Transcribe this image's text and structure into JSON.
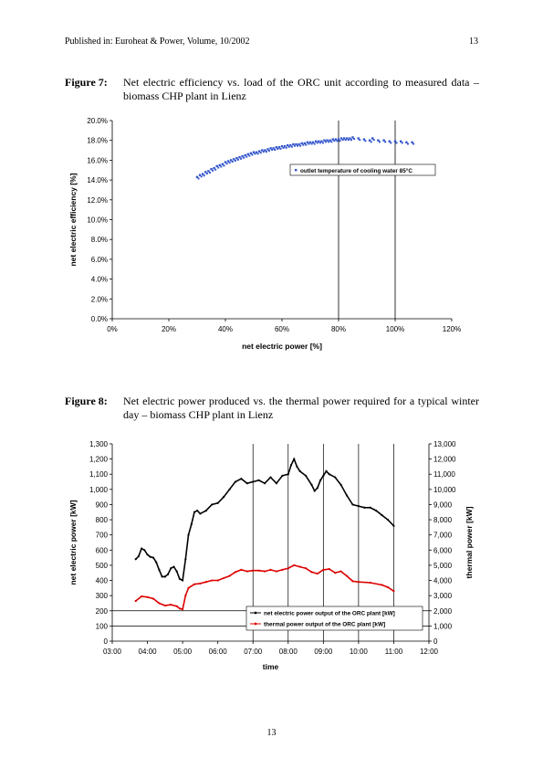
{
  "header": {
    "left": "Published in: Euroheat & Power, Volume, 10/2002",
    "page": "13"
  },
  "figures": [
    {
      "label": "Figure 7:",
      "caption": "Net electric efficiency vs. load of the ORC unit according to measured data – biomass CHP plant in Lienz"
    },
    {
      "label": "Figure 8:",
      "caption": "Net electric power produced vs. the thermal power required for a typical winter day – biomass CHP plant in Lienz"
    }
  ],
  "chart_data": [
    {
      "type": "scatter",
      "title": "",
      "xlabel": "net electric power [%]",
      "ylabel": "net electric efficiency [%]",
      "xlim": [
        0,
        120
      ],
      "ylim": [
        0,
        20
      ],
      "x_ticks": [
        "0%",
        "20%",
        "40%",
        "60%",
        "80%",
        "100%",
        "120%"
      ],
      "y_ticks": [
        "0.0%",
        "2.0%",
        "4.0%",
        "6.0%",
        "8.0%",
        "10.0%",
        "12.0%",
        "14.0%",
        "16.0%",
        "18.0%",
        "20.0%"
      ],
      "vertical_lines": [
        80,
        100
      ],
      "grid": false,
      "legend_position": "upper right",
      "series": [
        {
          "name": "outlet temperature of cooling water 85°C",
          "color": "#3355cc",
          "points": [
            [
              30,
              14.3
            ],
            [
              31,
              14.5
            ],
            [
              32,
              14.6
            ],
            [
              33,
              14.8
            ],
            [
              34,
              14.9
            ],
            [
              35,
              15.1
            ],
            [
              36,
              15.2
            ],
            [
              37,
              15.4
            ],
            [
              38,
              15.5
            ],
            [
              39,
              15.6
            ],
            [
              40,
              15.8
            ],
            [
              41,
              15.9
            ],
            [
              42,
              16.0
            ],
            [
              43,
              16.1
            ],
            [
              44,
              16.2
            ],
            [
              45,
              16.3
            ],
            [
              46,
              16.4
            ],
            [
              47,
              16.5
            ],
            [
              48,
              16.6
            ],
            [
              49,
              16.7
            ],
            [
              50,
              16.8
            ],
            [
              51,
              16.8
            ],
            [
              52,
              16.9
            ],
            [
              53,
              17.0
            ],
            [
              54,
              17.0
            ],
            [
              55,
              17.1
            ],
            [
              56,
              17.2
            ],
            [
              57,
              17.2
            ],
            [
              58,
              17.3
            ],
            [
              59,
              17.3
            ],
            [
              60,
              17.4
            ],
            [
              61,
              17.4
            ],
            [
              62,
              17.5
            ],
            [
              63,
              17.5
            ],
            [
              64,
              17.6
            ],
            [
              65,
              17.6
            ],
            [
              66,
              17.6
            ],
            [
              67,
              17.7
            ],
            [
              68,
              17.7
            ],
            [
              69,
              17.8
            ],
            [
              70,
              17.8
            ],
            [
              71,
              17.8
            ],
            [
              72,
              17.9
            ],
            [
              73,
              17.9
            ],
            [
              74,
              17.9
            ],
            [
              75,
              18.0
            ],
            [
              76,
              18.0
            ],
            [
              77,
              18.0
            ],
            [
              78,
              18.1
            ],
            [
              79,
              18.1
            ],
            [
              80,
              18.1
            ],
            [
              81,
              18.2
            ],
            [
              82,
              18.2
            ],
            [
              83,
              18.2
            ],
            [
              84,
              18.2
            ],
            [
              85,
              18.3
            ],
            [
              87,
              18.2
            ],
            [
              89,
              18.1
            ],
            [
              91,
              18.0
            ],
            [
              92,
              18.2
            ],
            [
              94,
              18.0
            ],
            [
              96,
              18.0
            ],
            [
              98,
              17.9
            ],
            [
              100,
              17.9
            ],
            [
              102,
              17.9
            ],
            [
              104,
              17.8
            ],
            [
              106,
              17.8
            ]
          ]
        }
      ]
    },
    {
      "type": "line",
      "title": "",
      "xlabel": "time",
      "ylabel": "net electric power [kW]",
      "y2label": "thermal power [kW]",
      "xlim": [
        "03:00",
        "12:00"
      ],
      "ylim": [
        0,
        1300
      ],
      "y2lim": [
        0,
        13000
      ],
      "x_ticks": [
        "03:00",
        "04:00",
        "05:00",
        "06:00",
        "07:00",
        "08:00",
        "09:00",
        "10:00",
        "11:00",
        "12:00"
      ],
      "y_ticks": [
        "0",
        "100",
        "200",
        "300",
        "400",
        "500",
        "600",
        "700",
        "800",
        "900",
        "1,000",
        "1,100",
        "1,200",
        "1,300"
      ],
      "y2_ticks": [
        "0",
        "1,000",
        "2,000",
        "3,000",
        "4,000",
        "5,000",
        "6,000",
        "7,000",
        "8,000",
        "9,000",
        "10,000",
        "11,000",
        "12,000",
        "13,000"
      ],
      "horizontal_lines": [
        100,
        200
      ],
      "vertical_lines": [
        "07:00",
        "08:00",
        "09:00",
        "10:00",
        "11:00"
      ],
      "grid": false,
      "legend_position": "lower right",
      "series": [
        {
          "name": "net electric power output of the ORC plant [kW]",
          "axis": "left",
          "color": "#000000",
          "points": [
            [
              "03:40",
              540
            ],
            [
              "03:45",
              560
            ],
            [
              "03:50",
              610
            ],
            [
              "03:55",
              600
            ],
            [
              "04:00",
              570
            ],
            [
              "04:05",
              555
            ],
            [
              "04:10",
              550
            ],
            [
              "04:15",
              520
            ],
            [
              "04:20",
              470
            ],
            [
              "04:25",
              425
            ],
            [
              "04:30",
              425
            ],
            [
              "04:35",
              440
            ],
            [
              "04:40",
              480
            ],
            [
              "04:45",
              490
            ],
            [
              "04:50",
              460
            ],
            [
              "04:55",
              410
            ],
            [
              "05:00",
              400
            ],
            [
              "05:05",
              540
            ],
            [
              "05:10",
              700
            ],
            [
              "05:15",
              770
            ],
            [
              "05:20",
              850
            ],
            [
              "05:25",
              860
            ],
            [
              "05:30",
              840
            ],
            [
              "05:40",
              860
            ],
            [
              "05:50",
              900
            ],
            [
              "06:00",
              910
            ],
            [
              "06:10",
              950
            ],
            [
              "06:20",
              1000
            ],
            [
              "06:30",
              1050
            ],
            [
              "06:40",
              1070
            ],
            [
              "06:50",
              1040
            ],
            [
              "07:00",
              1050
            ],
            [
              "07:10",
              1060
            ],
            [
              "07:20",
              1040
            ],
            [
              "07:30",
              1080
            ],
            [
              "07:40",
              1040
            ],
            [
              "07:50",
              1090
            ],
            [
              "08:00",
              1100
            ],
            [
              "08:05",
              1160
            ],
            [
              "08:10",
              1200
            ],
            [
              "08:15",
              1150
            ],
            [
              "08:20",
              1120
            ],
            [
              "08:30",
              1090
            ],
            [
              "08:40",
              1030
            ],
            [
              "08:45",
              990
            ],
            [
              "08:50",
              1010
            ],
            [
              "08:55",
              1060
            ],
            [
              "09:00",
              1090
            ],
            [
              "09:05",
              1120
            ],
            [
              "09:10",
              1100
            ],
            [
              "09:20",
              1080
            ],
            [
              "09:30",
              1030
            ],
            [
              "09:40",
              960
            ],
            [
              "09:50",
              900
            ],
            [
              "10:00",
              890
            ],
            [
              "10:10",
              880
            ],
            [
              "10:20",
              880
            ],
            [
              "10:30",
              860
            ],
            [
              "10:40",
              830
            ],
            [
              "10:50",
              800
            ],
            [
              "11:00",
              760
            ]
          ]
        },
        {
          "name": "thermal power output of the ORC plant [kW]",
          "axis": "right",
          "color": "#dd0000",
          "points": [
            [
              "03:40",
              2650
            ],
            [
              "03:50",
              2950
            ],
            [
              "04:00",
              2900
            ],
            [
              "04:10",
              2800
            ],
            [
              "04:20",
              2500
            ],
            [
              "04:30",
              2350
            ],
            [
              "04:40",
              2400
            ],
            [
              "04:50",
              2300
            ],
            [
              "04:55",
              2150
            ],
            [
              "05:00",
              2100
            ],
            [
              "05:05",
              3000
            ],
            [
              "05:10",
              3500
            ],
            [
              "05:20",
              3750
            ],
            [
              "05:30",
              3800
            ],
            [
              "05:40",
              3900
            ],
            [
              "05:50",
              4000
            ],
            [
              "06:00",
              4000
            ],
            [
              "06:10",
              4150
            ],
            [
              "06:20",
              4300
            ],
            [
              "06:30",
              4550
            ],
            [
              "06:40",
              4700
            ],
            [
              "06:50",
              4600
            ],
            [
              "07:00",
              4650
            ],
            [
              "07:10",
              4650
            ],
            [
              "07:20",
              4600
            ],
            [
              "07:30",
              4700
            ],
            [
              "07:40",
              4600
            ],
            [
              "07:50",
              4700
            ],
            [
              "08:00",
              4800
            ],
            [
              "08:10",
              5000
            ],
            [
              "08:20",
              4900
            ],
            [
              "08:30",
              4800
            ],
            [
              "08:40",
              4550
            ],
            [
              "08:50",
              4450
            ],
            [
              "09:00",
              4700
            ],
            [
              "09:10",
              4750
            ],
            [
              "09:20",
              4500
            ],
            [
              "09:30",
              4600
            ],
            [
              "09:40",
              4300
            ],
            [
              "09:50",
              3950
            ],
            [
              "10:00",
              3900
            ],
            [
              "10:20",
              3850
            ],
            [
              "10:40",
              3700
            ],
            [
              "10:50",
              3550
            ],
            [
              "11:00",
              3300
            ]
          ]
        }
      ]
    }
  ],
  "footer": {
    "page_number": "13"
  }
}
